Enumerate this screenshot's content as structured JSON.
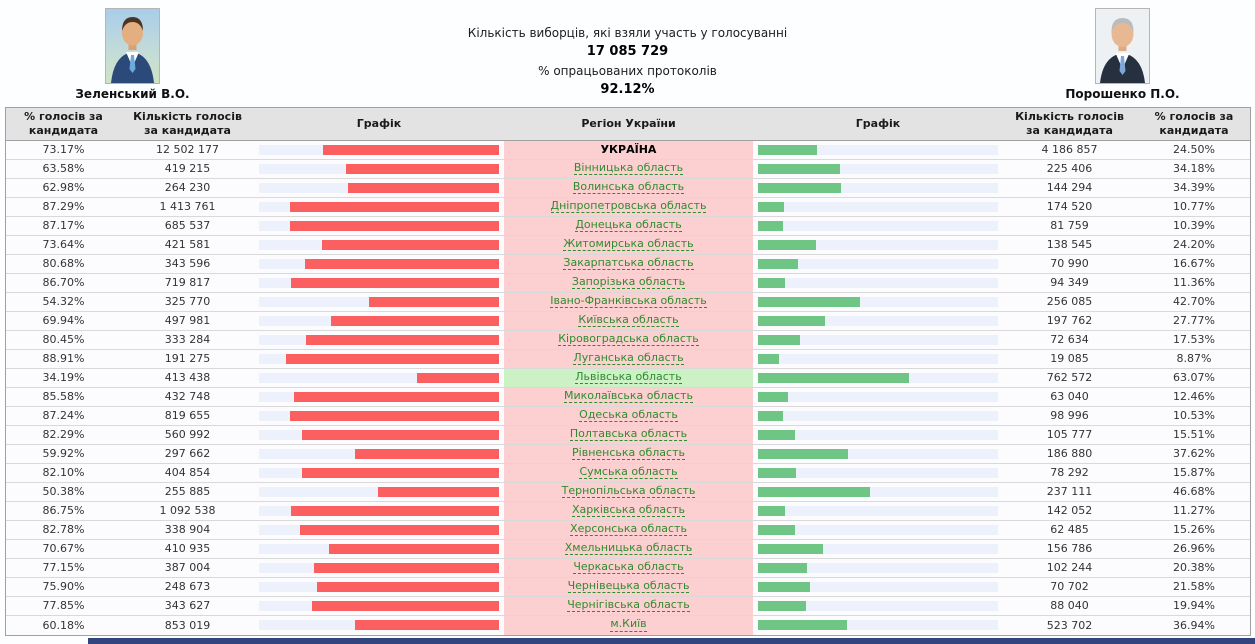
{
  "header": {
    "candidates": {
      "left": {
        "name": "Зеленський В.О."
      },
      "right": {
        "name": "Порошенко П.О."
      }
    },
    "turnout_label": "Кількість виборців, які взяли участь у голосуванні",
    "turnout_value": "17 085 729",
    "protocols_label": "% опрацьованих протоколів",
    "protocols_value": "92.12%"
  },
  "table": {
    "columns": [
      "% голосів за кандидата",
      "Кількість голосів за кандидата",
      "Графік",
      "Регіон України",
      "Графік",
      "Кількість голосів за кандидата",
      "% голосів за кандидата"
    ],
    "rows": [
      {
        "region": "УКРАЇНА",
        "z_pct": "73.17%",
        "z_votes": "12 502 177",
        "p_votes": "4 186 857",
        "p_pct": "24.50%",
        "total": true
      },
      {
        "region": "Вінницька область",
        "z_pct": "63.58%",
        "z_votes": "419 215",
        "p_votes": "225 406",
        "p_pct": "34.18%"
      },
      {
        "region": "Волинська область",
        "z_pct": "62.98%",
        "z_votes": "264 230",
        "p_votes": "144 294",
        "p_pct": "34.39%"
      },
      {
        "region": "Дніпропетровська область",
        "z_pct": "87.29%",
        "z_votes": "1 413 761",
        "p_votes": "174 520",
        "p_pct": "10.77%"
      },
      {
        "region": "Донецька область",
        "z_pct": "87.17%",
        "z_votes": "685 537",
        "p_votes": "81 759",
        "p_pct": "10.39%"
      },
      {
        "region": "Житомирська область",
        "z_pct": "73.64%",
        "z_votes": "421 581",
        "p_votes": "138 545",
        "p_pct": "24.20%"
      },
      {
        "region": "Закарпатська область",
        "z_pct": "80.68%",
        "z_votes": "343 596",
        "p_votes": "70 990",
        "p_pct": "16.67%"
      },
      {
        "region": "Запорізька область",
        "z_pct": "86.70%",
        "z_votes": "719 817",
        "p_votes": "94 349",
        "p_pct": "11.36%"
      },
      {
        "region": "Івано-Франківська область",
        "z_pct": "54.32%",
        "z_votes": "325 770",
        "p_votes": "256 085",
        "p_pct": "42.70%"
      },
      {
        "region": "Київська область",
        "z_pct": "69.94%",
        "z_votes": "497 981",
        "p_votes": "197 762",
        "p_pct": "27.77%"
      },
      {
        "region": "Кіровоградська область",
        "z_pct": "80.45%",
        "z_votes": "333 284",
        "p_votes": "72 634",
        "p_pct": "17.53%"
      },
      {
        "region": "Луганська область",
        "z_pct": "88.91%",
        "z_votes": "191 275",
        "p_votes": "19 085",
        "p_pct": "8.87%"
      },
      {
        "region": "Львівська область",
        "z_pct": "34.19%",
        "z_votes": "413 438",
        "p_votes": "762 572",
        "p_pct": "63.07%",
        "highlight": true
      },
      {
        "region": "Миколаївська область",
        "z_pct": "85.58%",
        "z_votes": "432 748",
        "p_votes": "63 040",
        "p_pct": "12.46%"
      },
      {
        "region": "Одеська область",
        "z_pct": "87.24%",
        "z_votes": "819 655",
        "p_votes": "98 996",
        "p_pct": "10.53%"
      },
      {
        "region": "Полтавська область",
        "z_pct": "82.29%",
        "z_votes": "560 992",
        "p_votes": "105 777",
        "p_pct": "15.51%"
      },
      {
        "region": "Рівненська область",
        "z_pct": "59.92%",
        "z_votes": "297 662",
        "p_votes": "186 880",
        "p_pct": "37.62%"
      },
      {
        "region": "Сумська область",
        "z_pct": "82.10%",
        "z_votes": "404 854",
        "p_votes": "78 292",
        "p_pct": "15.87%"
      },
      {
        "region": "Тернопільська область",
        "z_pct": "50.38%",
        "z_votes": "255 885",
        "p_votes": "237 111",
        "p_pct": "46.68%"
      },
      {
        "region": "Харківська область",
        "z_pct": "86.75%",
        "z_votes": "1 092 538",
        "p_votes": "142 052",
        "p_pct": "11.27%"
      },
      {
        "region": "Херсонська область",
        "z_pct": "82.78%",
        "z_votes": "338 904",
        "p_votes": "62 485",
        "p_pct": "15.26%"
      },
      {
        "region": "Хмельницька область",
        "z_pct": "70.67%",
        "z_votes": "410 935",
        "p_votes": "156 786",
        "p_pct": "26.96%"
      },
      {
        "region": "Черкаська область",
        "z_pct": "77.15%",
        "z_votes": "387 004",
        "p_votes": "102 244",
        "p_pct": "20.38%"
      },
      {
        "region": "Чернівецька область",
        "z_pct": "75.90%",
        "z_votes": "248 673",
        "p_votes": "70 702",
        "p_pct": "21.58%"
      },
      {
        "region": "Чернігівська область",
        "z_pct": "77.85%",
        "z_votes": "343 627",
        "p_votes": "88 040",
        "p_pct": "19.94%"
      },
      {
        "region": "м.Київ",
        "z_pct": "60.18%",
        "z_votes": "853 019",
        "p_votes": "523 702",
        "p_pct": "36.94%"
      }
    ]
  },
  "colors": {
    "zelensky_bar": "#fc5f5f",
    "poroshenko_bar": "#6ec584",
    "bar_track": "#edf1fc",
    "region_bg": "#fcd0d0",
    "highlight_bg": "#cbf1c5",
    "link_green": "#2e8b2e"
  }
}
